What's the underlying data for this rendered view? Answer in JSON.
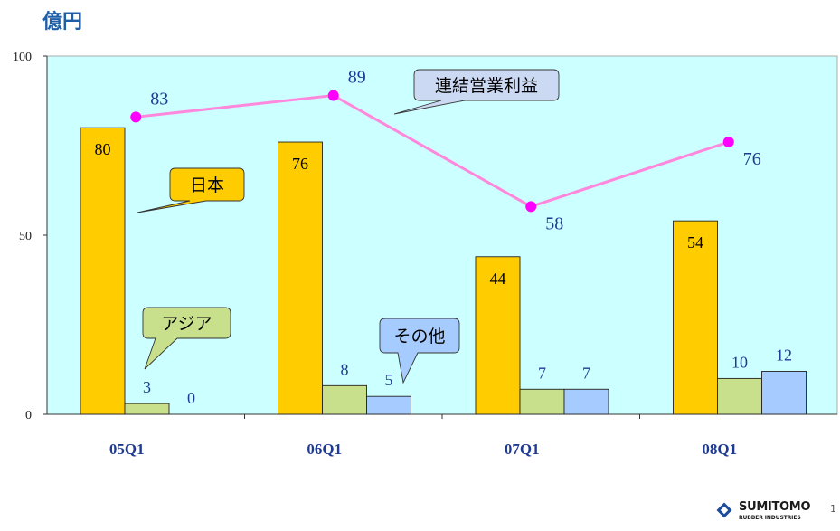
{
  "unit_title": "億円",
  "chart_data": {
    "type": "bar",
    "title": "",
    "xlabel": "",
    "ylabel": "億円",
    "ylim": [
      0,
      100
    ],
    "y_ticks": [
      0,
      50,
      100
    ],
    "categories": [
      "05Q1",
      "06Q1",
      "07Q1",
      "08Q1"
    ],
    "series": [
      {
        "name": "日本",
        "values": [
          80,
          76,
          44,
          54
        ],
        "color": "#ffcc00"
      },
      {
        "name": "アジア",
        "values": [
          3,
          8,
          7,
          10
        ],
        "color": "#c8e08c"
      },
      {
        "name": "その他",
        "values": [
          0,
          5,
          7,
          12
        ],
        "color": "#a6ccff"
      }
    ],
    "line_series": {
      "name": "連結営業利益",
      "values": [
        83,
        89,
        58,
        76
      ],
      "color": "#ff88dd",
      "marker_color": "#ff00ff"
    },
    "plot_background": "#ccffff",
    "label_color_bars_japan": "#000000",
    "label_color_other": "#1f3a93"
  },
  "logo": {
    "name": "SUMITOMO",
    "sub": "RUBBER INDUSTRIES"
  },
  "page_number": "1"
}
